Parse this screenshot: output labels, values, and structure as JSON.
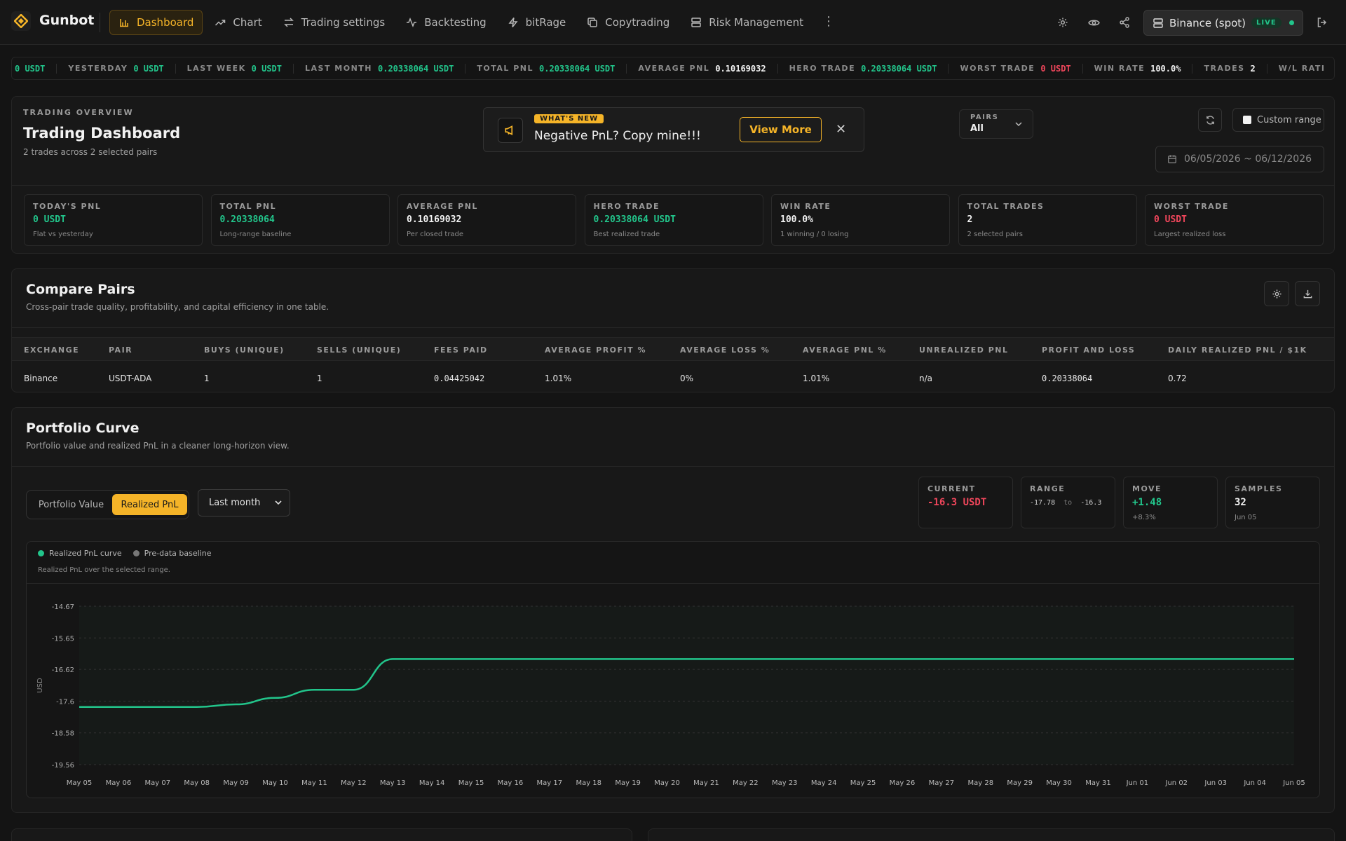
{
  "nav": {
    "brand": "Gunbot",
    "items": [
      {
        "label": "Dashboard",
        "icon": "bar-chart-icon",
        "active": true
      },
      {
        "label": "Chart",
        "icon": "trending-up-icon"
      },
      {
        "label": "Trading settings",
        "icon": "arrows-swap-icon"
      },
      {
        "label": "Backtesting",
        "icon": "activity-icon"
      },
      {
        "label": "bitRage",
        "icon": "zap-icon"
      },
      {
        "label": "Copytrading",
        "icon": "copy-icon"
      },
      {
        "label": "Risk Management",
        "icon": "server-icon"
      }
    ],
    "exchange": "Binance (spot)",
    "live": "LIVE"
  },
  "ticker": [
    {
      "label": "",
      "value": "0 USDT",
      "color": "green"
    },
    {
      "label": "YESTERDAY",
      "value": "0 USDT",
      "color": "green"
    },
    {
      "label": "LAST WEEK",
      "value": "0 USDT",
      "color": "green"
    },
    {
      "label": "LAST MONTH",
      "value": "0.20338064 USDT",
      "color": "green"
    },
    {
      "label": "TOTAL PNL",
      "value": "0.20338064 USDT",
      "color": "green"
    },
    {
      "label": "AVERAGE PNL",
      "value": "0.10169032",
      "color": "white"
    },
    {
      "label": "HERO TRADE",
      "value": "0.20338064 USDT",
      "color": "green"
    },
    {
      "label": "WORST TRADE",
      "value": "0 USDT",
      "color": "red"
    },
    {
      "label": "WIN RATE",
      "value": "100.0%",
      "color": "white"
    },
    {
      "label": "TRADES",
      "value": "2",
      "color": "white"
    },
    {
      "label": "W/L RATI",
      "value": "",
      "color": "white"
    }
  ],
  "overview": {
    "kicker": "TRADING OVERVIEW",
    "title": "Trading Dashboard",
    "subtitle": "2 trades across 2 selected pairs",
    "banner": {
      "badge": "WHAT'S NEW",
      "text": "Negative PnL? Copy mine!!!",
      "button": "View More"
    },
    "pairs_label": "PAIRS",
    "pairs_value": "All",
    "custom_range": "Custom range",
    "date_range": "06/05/2026 ~ 06/12/2026",
    "stats": [
      {
        "label": "TODAY'S PNL",
        "value": "0 USDT",
        "sub": "Flat vs yesterday",
        "color": "green"
      },
      {
        "label": "TOTAL PNL",
        "value": "0.20338064",
        "sub": "Long-range baseline",
        "color": "green"
      },
      {
        "label": "AVERAGE PNL",
        "value": "0.10169032",
        "sub": "Per closed trade",
        "color": "white"
      },
      {
        "label": "HERO TRADE",
        "value": "0.20338064 USDT",
        "sub": "Best realized trade",
        "color": "green"
      },
      {
        "label": "WIN RATE",
        "value": "100.0%",
        "sub": "1 winning / 0 losing",
        "color": "white"
      },
      {
        "label": "TOTAL TRADES",
        "value": "2",
        "sub": "2 selected pairs",
        "color": "white"
      },
      {
        "label": "WORST TRADE",
        "value": "0 USDT",
        "sub": "Largest realized loss",
        "color": "red"
      }
    ]
  },
  "compare": {
    "title": "Compare Pairs",
    "subtitle": "Cross-pair trade quality, profitability, and capital efficiency in one table.",
    "headers": [
      "EXCHANGE",
      "PAIR",
      "BUYS (UNIQUE)",
      "SELLS (UNIQUE)",
      "FEES PAID",
      "AVERAGE PROFIT %",
      "AVERAGE LOSS %",
      "AVERAGE PNL %",
      "UNREALIZED PNL",
      "PROFIT AND LOSS",
      "DAILY REALIZED PNL / $1K"
    ],
    "rows": [
      [
        "Binance",
        "USDT-ADA",
        "1",
        "1",
        "0.04425042",
        "1.01%",
        "0%",
        "1.01%",
        "n/a",
        "0.20338064",
        "0.72"
      ]
    ]
  },
  "portfolio": {
    "title": "Portfolio Curve",
    "subtitle": "Portfolio value and realized PnL in a cleaner long-horizon view.",
    "toggle": [
      "Portfolio Value",
      "Realized PnL"
    ],
    "period": "Last month",
    "period_options": [
      "Last month"
    ],
    "stats": {
      "current_label": "CURRENT",
      "current_value": "-16.3 USDT",
      "range_label": "RANGE",
      "range_low": "-17.78",
      "range_to": "to",
      "range_high": "-16.3",
      "move_label": "MOVE",
      "move_value": "+1.48",
      "move_sub": "+8.3%",
      "samples_label": "SAMPLES",
      "samples_value": "32",
      "samples_sub": "Jun 05"
    },
    "legend": [
      "Realized PnL curve",
      "Pre-data baseline"
    ],
    "note": "Realized PnL over the selected range."
  },
  "chart_data": {
    "type": "line",
    "ylabel": "USD",
    "ylim": [
      -19.56,
      -14.67
    ],
    "yticks": [
      "-14.67",
      "-15.65",
      "-16.62",
      "-17.6",
      "-18.58",
      "-19.56"
    ],
    "x": [
      "May 05",
      "May 06",
      "May 07",
      "May 08",
      "May 09",
      "May 10",
      "May 11",
      "May 12",
      "May 13",
      "May 14",
      "May 15",
      "May 16",
      "May 17",
      "May 18",
      "May 19",
      "May 20",
      "May 21",
      "May 22",
      "May 23",
      "May 24",
      "May 25",
      "May 26",
      "May 27",
      "May 28",
      "May 29",
      "May 30",
      "May 31",
      "Jun 01",
      "Jun 02",
      "Jun 03",
      "Jun 04",
      "Jun 05"
    ],
    "series": [
      {
        "name": "Realized PnL curve",
        "color": "#22c58b",
        "values": [
          -17.78,
          -17.78,
          -17.78,
          -17.78,
          -17.7,
          -17.5,
          -17.25,
          -17.25,
          -16.3,
          -16.3,
          -16.3,
          -16.3,
          -16.3,
          -16.3,
          -16.3,
          -16.3,
          -16.3,
          -16.3,
          -16.3,
          -16.3,
          -16.3,
          -16.3,
          -16.3,
          -16.3,
          -16.3,
          -16.3,
          -16.3,
          -16.3,
          -16.3,
          -16.3,
          -16.3,
          -16.3
        ]
      }
    ],
    "grid": true,
    "legend_position": "top-left"
  }
}
